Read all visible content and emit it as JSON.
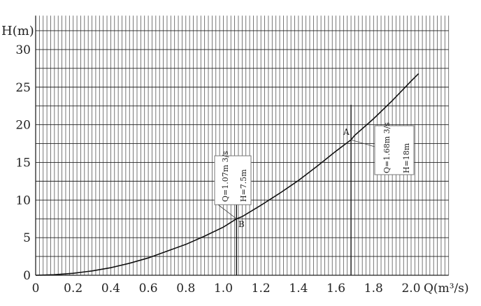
{
  "chart_data": {
    "type": "line",
    "title": "",
    "xlabel": "Q(m³/s)",
    "ylabel": "H(m)",
    "xlim": [
      0,
      2.2
    ],
    "ylim": [
      0,
      34.5
    ],
    "grid": true,
    "grid_x_step": 0.02,
    "grid_y_step": 2.5,
    "x_ticks": [
      0,
      0.2,
      0.4,
      0.6,
      0.8,
      1.0,
      1.2,
      1.4,
      1.6,
      1.8,
      2.0
    ],
    "x_tick_labels": [
      "0",
      "0.2",
      "0.4",
      "0.6",
      "0.8",
      "1.0",
      "1.2",
      "1.4",
      "1.6",
      "1.8",
      "2.0"
    ],
    "y_ticks": [
      0,
      5,
      10,
      15,
      20,
      25,
      30
    ],
    "y_tick_labels": [
      "0",
      "5",
      "10",
      "15",
      "20",
      "25",
      "30"
    ],
    "series": [
      {
        "color": "#111111",
        "x": [
          0,
          0.1,
          0.2,
          0.3,
          0.4,
          0.5,
          0.6,
          0.7,
          0.8,
          0.9,
          1.0,
          1.07,
          1.1,
          1.2,
          1.3,
          1.4,
          1.5,
          1.6,
          1.68,
          1.7,
          1.8,
          1.9,
          2.0,
          2.04
        ],
        "y": [
          0,
          0.07,
          0.26,
          0.58,
          1.0,
          1.6,
          2.3,
          3.2,
          4.1,
          5.2,
          6.4,
          7.5,
          7.8,
          9.3,
          10.9,
          12.6,
          14.5,
          16.5,
          18.0,
          18.6,
          20.8,
          23.2,
          25.8,
          26.8
        ]
      }
    ],
    "annotations": [
      {
        "point": "A",
        "x": 1.68,
        "y": 18,
        "lines": [
          "Q=1.68m 3/s",
          "H=18m"
        ]
      },
      {
        "point": "B",
        "x": 1.07,
        "y": 7.5,
        "lines": [
          "Q=1.07m 3/s",
          "H=7.5m"
        ]
      }
    ]
  }
}
